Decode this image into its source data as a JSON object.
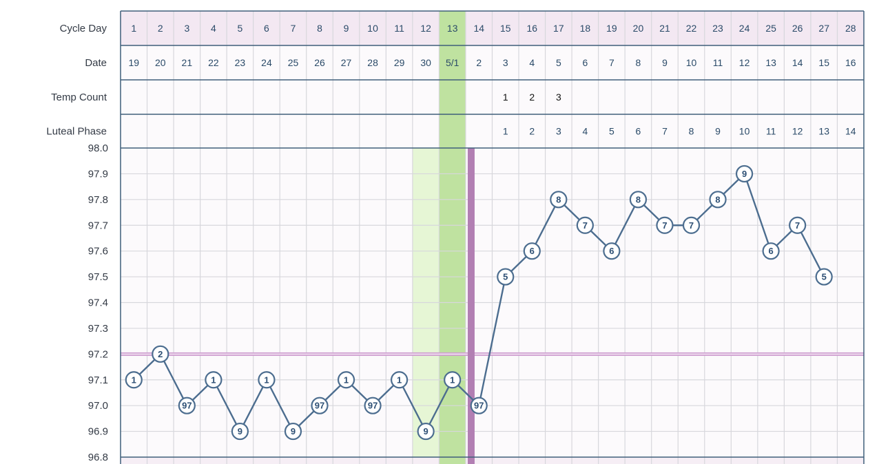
{
  "chart_data": {
    "type": "line",
    "row_labels": {
      "cycle_day": "Cycle Day",
      "date": "Date",
      "temp_count": "Temp Count",
      "luteal_phase": "Luteal Phase"
    },
    "cycle_days": [
      "1",
      "2",
      "3",
      "4",
      "5",
      "6",
      "7",
      "8",
      "9",
      "10",
      "11",
      "12",
      "13",
      "14",
      "15",
      "16",
      "17",
      "18",
      "19",
      "20",
      "21",
      "22",
      "23",
      "24",
      "25",
      "26",
      "27",
      "28"
    ],
    "dates": [
      "19",
      "20",
      "21",
      "22",
      "23",
      "24",
      "25",
      "26",
      "27",
      "28",
      "29",
      "30",
      "5/1",
      "2",
      "3",
      "4",
      "5",
      "6",
      "7",
      "8",
      "9",
      "10",
      "11",
      "12",
      "13",
      "14",
      "15",
      "16"
    ],
    "temp_count": [
      "",
      "",
      "",
      "",
      "",
      "",
      "",
      "",
      "",
      "",
      "",
      "",
      "",
      "",
      "1",
      "2",
      "3",
      "",
      "",
      "",
      "",
      "",
      "",
      "",
      "",
      "",
      "",
      ""
    ],
    "luteal_phase": [
      "",
      "",
      "",
      "",
      "",
      "",
      "",
      "",
      "",
      "",
      "",
      "",
      "",
      "",
      "1",
      "2",
      "3",
      "4",
      "5",
      "6",
      "7",
      "8",
      "9",
      "10",
      "11",
      "12",
      "13",
      "14"
    ],
    "y_ticks": [
      "98.0",
      "97.9",
      "97.8",
      "97.7",
      "97.6",
      "97.5",
      "97.4",
      "97.3",
      "97.2",
      "97.1",
      "97.0",
      "96.9",
      "96.8"
    ],
    "ylim": [
      96.8,
      98.0
    ],
    "temperatures": [
      97.1,
      97.2,
      97.0,
      97.1,
      96.9,
      97.1,
      96.9,
      97.0,
      97.1,
      97.0,
      97.1,
      96.9,
      97.1,
      97.0,
      97.5,
      97.6,
      97.8,
      97.7,
      97.6,
      97.8,
      97.7,
      97.7,
      97.8,
      97.9,
      97.6,
      97.7,
      97.5,
      null
    ],
    "point_labels": [
      "1",
      "2",
      "97",
      "1",
      "9",
      "1",
      "9",
      "97",
      "1",
      "97",
      "1",
      "9",
      "1",
      "97",
      "5",
      "6",
      "8",
      "7",
      "6",
      "8",
      "7",
      "7",
      "8",
      "9",
      "6",
      "7",
      "5",
      ""
    ],
    "coverline": 97.2,
    "ovulation_day": 14,
    "fertile_light_days": [
      12
    ],
    "fertile_peak_days": [
      13
    ],
    "grid": true,
    "colors": {
      "header_bg": "#f3e8f2",
      "grid_border": "#3f5e7a",
      "line": "#4c6d8f",
      "coverline": "#cf9ed0",
      "ovulation": "#b27fb3",
      "fertile_light": "#e6f6d5",
      "fertile_peak": "#bfe2a0"
    }
  }
}
